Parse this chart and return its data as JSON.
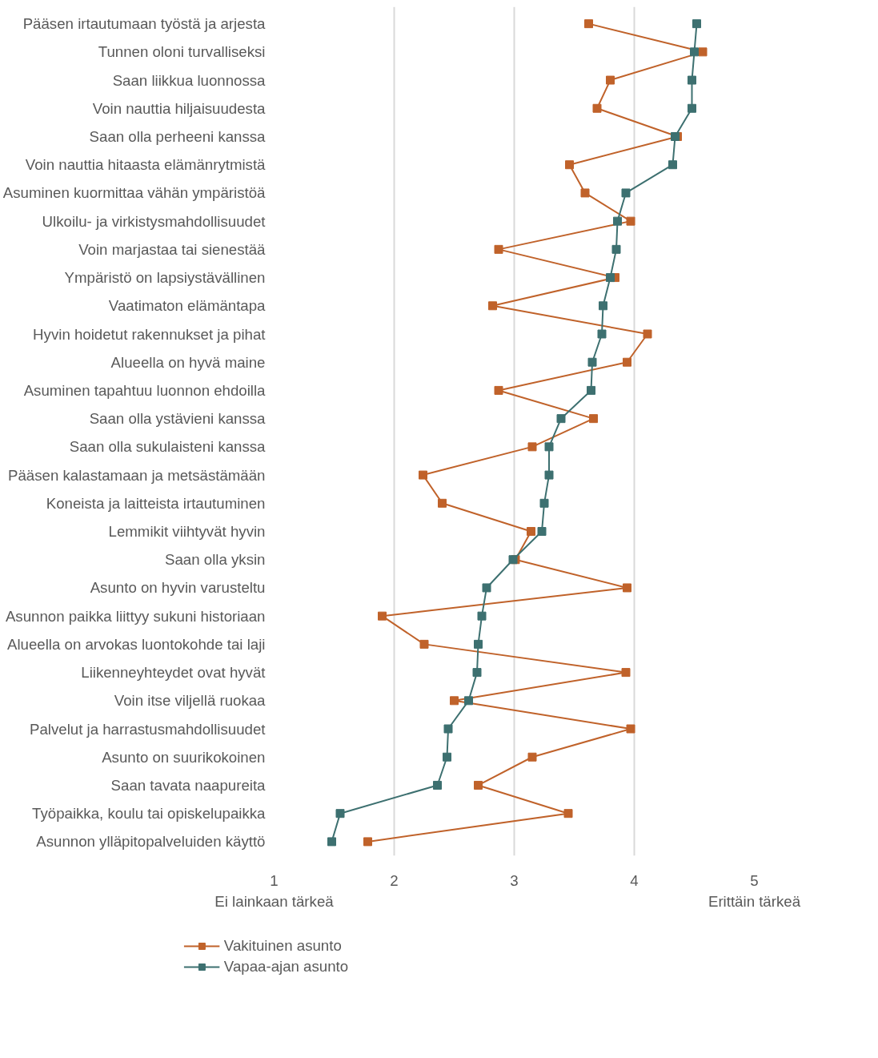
{
  "chart_data": {
    "type": "line",
    "categories": [
      "Pääsen irtautumaan työstä ja arjesta",
      "Tunnen oloni turvalliseksi",
      "Saan liikkua luonnossa",
      "Voin nauttia hiljaisuudesta",
      "Saan olla perheeni kanssa",
      "Voin nauttia hitaasta elämänrytmistä",
      "Asuminen kuormittaa vähän ympäristöä",
      "Ulkoilu- ja virkistysmahdollisuudet",
      "Voin marjastaa tai sienestää",
      "Ympäristö on lapsiystävällinen",
      "Vaatimaton elämäntapa",
      "Hyvin hoidetut rakennukset ja pihat",
      "Alueella on hyvä maine",
      "Asuminen tapahtuu luonnon ehdoilla",
      "Saan olla ystävieni kanssa",
      "Saan olla sukulaisteni kanssa",
      "Pääsen kalastamaan ja metsästämään",
      "Koneista ja laitteista irtautuminen",
      "Lemmikit viihtyvät hyvin",
      "Saan olla yksin",
      "Asunto on hyvin varusteltu",
      "Asunnon paikka liittyy sukuni historiaan",
      "Alueella on arvokas luontokohde tai laji",
      "Liikenneyhteydet ovat hyvät",
      "Voin itse viljellä ruokaa",
      "Palvelut ja harrastusmahdollisuudet",
      "Asunto on suurikokoinen",
      "Saan tavata naapureita",
      "Työpaikka, koulu tai opiskelupaikka",
      "Asunnon ylläpitopalveluiden käyttö"
    ],
    "orientation": "horizontal",
    "series": [
      {
        "name": "Vakituinen asunto",
        "color": "#c0622a",
        "values": [
          3.62,
          4.57,
          3.8,
          3.69,
          4.36,
          3.46,
          3.59,
          3.97,
          2.87,
          3.84,
          2.82,
          4.11,
          3.94,
          2.87,
          3.66,
          3.15,
          2.24,
          2.4,
          3.14,
          3.01,
          3.94,
          1.9,
          2.25,
          3.93,
          2.5,
          3.97,
          3.15,
          2.7,
          3.45,
          1.78
        ]
      },
      {
        "name": "Vapaa-ajan asunto",
        "color": "#3d7070",
        "values": [
          4.52,
          4.5,
          4.48,
          4.48,
          4.34,
          4.32,
          3.93,
          3.86,
          3.85,
          3.8,
          3.74,
          3.73,
          3.65,
          3.64,
          3.39,
          3.29,
          3.29,
          3.25,
          3.23,
          2.99,
          2.77,
          2.73,
          2.7,
          2.69,
          2.62,
          2.45,
          2.44,
          2.36,
          1.55,
          1.48
        ]
      }
    ],
    "xlim": [
      1,
      5
    ],
    "xticks": [
      1,
      2,
      3,
      4,
      5
    ],
    "annotations": [
      "Ei lainkaan tärkeä",
      "Erittäin tärkeä"
    ],
    "grid": "x",
    "legend": "bottom",
    "marker": "square",
    "line_style": "solid"
  }
}
